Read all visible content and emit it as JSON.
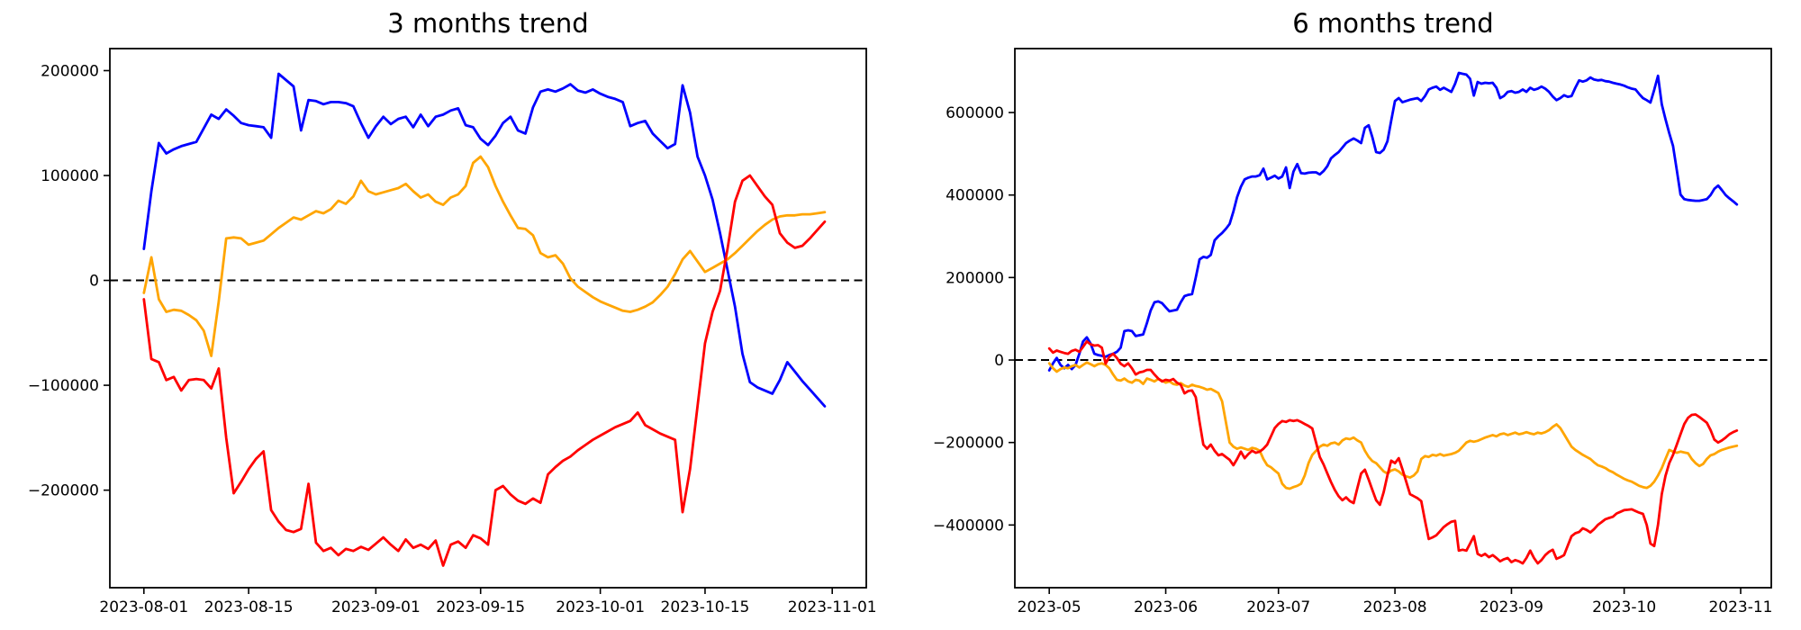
{
  "figure": {
    "background": "#ffffff",
    "text_color": "#000000",
    "zero_line_color": "#000000"
  },
  "chart_data": [
    {
      "type": "line",
      "title": "3 months trend",
      "xlabel": "",
      "ylabel": "",
      "grid": false,
      "legend": "none",
      "start_date": "2023-08-01",
      "freq": "daily",
      "x_tick_labels": [
        "2023-08-01",
        "2023-08-15",
        "2023-09-01",
        "2023-09-15",
        "2023-10-01",
        "2023-10-15",
        "2023-11-01"
      ],
      "x_tick_days": [
        0,
        14,
        31,
        45,
        61,
        75,
        92
      ],
      "xlim_days": [
        -4.55,
        96.55
      ],
      "ylim": [
        -293000,
        221000
      ],
      "y_ticks": [
        200000,
        100000,
        0,
        -100000,
        -200000
      ],
      "y_tick_labels": [
        "200000",
        "100000",
        "0",
        "−100000",
        "−200000"
      ],
      "zero_dashed_line": 0,
      "series": [
        {
          "name": "blue-series",
          "color": "#0000ff",
          "values": [
            30000,
            85000,
            131000,
            121000,
            125000,
            128000,
            130000,
            132000,
            145000,
            158000,
            154000,
            163000,
            157000,
            150000,
            148000,
            147000,
            146000,
            136000,
            197000,
            191000,
            185000,
            143000,
            172000,
            171000,
            168000,
            170000,
            170000,
            169000,
            166000,
            150000,
            136000,
            147000,
            156000,
            149000,
            154000,
            156000,
            146000,
            158000,
            147000,
            156000,
            158000,
            162000,
            164000,
            148000,
            146000,
            135000,
            129000,
            138000,
            150000,
            156000,
            143000,
            140000,
            165000,
            180000,
            182000,
            180000,
            183000,
            187000,
            181000,
            179000,
            182000,
            178000,
            175000,
            173000,
            170000,
            147000,
            150000,
            152000,
            140000,
            133000,
            126000,
            130000,
            186000,
            160000,
            118000,
            100000,
            77000,
            45000,
            10000,
            -25000,
            -70000,
            -97000,
            -102000,
            -105000,
            -108000,
            -95000,
            -78000,
            -87000,
            -96000,
            -104000,
            -112000,
            -120000
          ]
        },
        {
          "name": "orange-series",
          "color": "#ffa500",
          "values": [
            -12000,
            22000,
            -18000,
            -30000,
            -28000,
            -29000,
            -33000,
            -38000,
            -48000,
            -72000,
            -20000,
            40000,
            41000,
            40000,
            34000,
            36000,
            38000,
            44000,
            50000,
            55000,
            60000,
            58000,
            62000,
            66000,
            64000,
            68000,
            76000,
            73000,
            80000,
            95000,
            85000,
            82000,
            84000,
            86000,
            88000,
            92000,
            85000,
            79000,
            82000,
            75000,
            72000,
            79000,
            82000,
            90000,
            112000,
            118000,
            108000,
            90000,
            75000,
            62000,
            50000,
            49000,
            43000,
            26000,
            22000,
            24000,
            16000,
            2000,
            -6000,
            -11000,
            -16000,
            -20000,
            -23000,
            -26000,
            -29000,
            -30000,
            -28000,
            -25000,
            -21000,
            -14000,
            -6000,
            6000,
            20000,
            28000,
            18000,
            8000,
            12000,
            16000,
            20000,
            26000,
            33000,
            40000,
            47000,
            53000,
            58000,
            61000,
            62000,
            62000,
            63000,
            63000,
            64000,
            65000
          ]
        },
        {
          "name": "red-series",
          "color": "#ff0000",
          "values": [
            -18000,
            -75000,
            -78000,
            -95000,
            -92000,
            -105000,
            -95000,
            -94000,
            -95000,
            -103000,
            -84000,
            -150000,
            -203000,
            -192000,
            -180000,
            -170000,
            -163000,
            -219000,
            -230000,
            -238000,
            -240000,
            -237000,
            -194000,
            -250000,
            -258000,
            -255000,
            -262000,
            -256000,
            -258000,
            -254000,
            -257000,
            -251000,
            -245000,
            -252000,
            -258000,
            -247000,
            -255000,
            -252000,
            -256000,
            -248000,
            -272000,
            -252000,
            -249000,
            -255000,
            -243000,
            -246000,
            -252000,
            -200000,
            -196000,
            -204000,
            -210000,
            -213000,
            -208000,
            -212000,
            -185000,
            -178000,
            -172000,
            -168000,
            -162000,
            -157000,
            -152000,
            -148000,
            -144000,
            -140000,
            -137000,
            -134000,
            -126000,
            -138000,
            -142000,
            -146000,
            -149000,
            -152000,
            -221000,
            -180000,
            -120000,
            -60000,
            -30000,
            -10000,
            30000,
            75000,
            95000,
            100000,
            90000,
            80000,
            72000,
            45000,
            36000,
            31000,
            33000,
            40000,
            48000,
            56000
          ]
        }
      ]
    },
    {
      "type": "line",
      "title": "6 months trend",
      "xlabel": "",
      "ylabel": "",
      "grid": false,
      "legend": "none",
      "start_date": "2023-05-01",
      "freq": "daily",
      "x_tick_labels": [
        "2023-05",
        "2023-06",
        "2023-07",
        "2023-08",
        "2023-09",
        "2023-10",
        "2023-11"
      ],
      "x_tick_days": [
        0,
        31,
        61,
        92,
        123,
        153,
        184
      ],
      "xlim_days": [
        -9.15,
        192.15
      ],
      "ylim": [
        -552000,
        755000
      ],
      "y_ticks": [
        600000,
        400000,
        200000,
        0,
        -200000,
        -400000
      ],
      "y_tick_labels": [
        "600000",
        "400000",
        "200000",
        "0",
        "−200000",
        "−400000"
      ],
      "zero_dashed_line": 0,
      "series": [
        {
          "name": "blue-series",
          "color": "#0000ff",
          "values": [
            -25000,
            -8000,
            5000,
            -12000,
            -20000,
            -12000,
            -22000,
            -12000,
            15000,
            45000,
            55000,
            40000,
            15000,
            12000,
            10000,
            8000,
            12000,
            15000,
            20000,
            30000,
            70000,
            72000,
            70000,
            58000,
            60000,
            62000,
            90000,
            120000,
            140000,
            142000,
            138000,
            128000,
            118000,
            120000,
            122000,
            140000,
            155000,
            158000,
            160000,
            200000,
            244000,
            250000,
            248000,
            255000,
            290000,
            300000,
            308000,
            318000,
            330000,
            360000,
            395000,
            420000,
            438000,
            442000,
            445000,
            445000,
            448000,
            464000,
            438000,
            442000,
            447000,
            440000,
            445000,
            467000,
            417000,
            457000,
            475000,
            453000,
            452000,
            454000,
            455000,
            455000,
            450000,
            458000,
            470000,
            489000,
            497000,
            504000,
            515000,
            526000,
            532000,
            537000,
            532000,
            526000,
            563000,
            569000,
            540000,
            504000,
            502000,
            510000,
            530000,
            580000,
            628000,
            635000,
            625000,
            628000,
            631000,
            633000,
            635000,
            628000,
            640000,
            656000,
            660000,
            663000,
            655000,
            660000,
            655000,
            650000,
            670000,
            696000,
            694000,
            692000,
            682000,
            641000,
            674000,
            670000,
            672000,
            671000,
            672000,
            660000,
            635000,
            640000,
            650000,
            652000,
            648000,
            650000,
            656000,
            650000,
            660000,
            655000,
            658000,
            663000,
            658000,
            650000,
            639000,
            630000,
            635000,
            642000,
            638000,
            640000,
            660000,
            678000,
            675000,
            678000,
            685000,
            680000,
            678000,
            679000,
            676000,
            675000,
            672000,
            670000,
            668000,
            665000,
            661000,
            658000,
            656000,
            645000,
            635000,
            630000,
            624000,
            655000,
            689000,
            620000,
            584000,
            550000,
            519000,
            460000,
            401000,
            390000,
            388000,
            387000,
            386000,
            386000,
            388000,
            390000,
            400000,
            415000,
            423000,
            412000,
            400000,
            392000,
            385000,
            377000
          ]
        },
        {
          "name": "orange-series",
          "color": "#ffa500",
          "values": [
            -8000,
            -20000,
            -28000,
            -22000,
            -18000,
            -20000,
            -15000,
            -12000,
            -18000,
            -12000,
            -6000,
            -10000,
            -15000,
            -10000,
            -8000,
            -12000,
            -20000,
            -35000,
            -48000,
            -50000,
            -45000,
            -52000,
            -55000,
            -48000,
            -50000,
            -58000,
            -45000,
            -48000,
            -52000,
            -46000,
            -50000,
            -55000,
            -52000,
            -58000,
            -60000,
            -56000,
            -62000,
            -65000,
            -60000,
            -63000,
            -65000,
            -68000,
            -72000,
            -70000,
            -75000,
            -80000,
            -100000,
            -150000,
            -200000,
            -210000,
            -215000,
            -212000,
            -215000,
            -218000,
            -213000,
            -215000,
            -220000,
            -240000,
            -255000,
            -260000,
            -268000,
            -275000,
            -300000,
            -310000,
            -312000,
            -308000,
            -305000,
            -300000,
            -280000,
            -250000,
            -230000,
            -220000,
            -210000,
            -205000,
            -208000,
            -202000,
            -200000,
            -205000,
            -195000,
            -190000,
            -192000,
            -188000,
            -195000,
            -200000,
            -220000,
            -235000,
            -245000,
            -250000,
            -260000,
            -270000,
            -275000,
            -268000,
            -265000,
            -270000,
            -278000,
            -282000,
            -285000,
            -280000,
            -270000,
            -240000,
            -233000,
            -235000,
            -230000,
            -232000,
            -228000,
            -232000,
            -230000,
            -228000,
            -225000,
            -220000,
            -210000,
            -200000,
            -196000,
            -198000,
            -196000,
            -192000,
            -188000,
            -185000,
            -182000,
            -185000,
            -180000,
            -178000,
            -182000,
            -179000,
            -176000,
            -180000,
            -178000,
            -175000,
            -178000,
            -180000,
            -176000,
            -178000,
            -175000,
            -170000,
            -162000,
            -156000,
            -165000,
            -180000,
            -195000,
            -210000,
            -218000,
            -224000,
            -230000,
            -235000,
            -240000,
            -248000,
            -255000,
            -258000,
            -262000,
            -268000,
            -272000,
            -278000,
            -283000,
            -288000,
            -292000,
            -295000,
            -300000,
            -305000,
            -308000,
            -310000,
            -305000,
            -295000,
            -280000,
            -262000,
            -240000,
            -218000,
            -222000,
            -225000,
            -222000,
            -224000,
            -226000,
            -240000,
            -250000,
            -257000,
            -252000,
            -240000,
            -231000,
            -228000,
            -222000,
            -218000,
            -215000,
            -212000,
            -210000,
            -208000
          ]
        },
        {
          "name": "red-series",
          "color": "#ff0000",
          "values": [
            28000,
            18000,
            23000,
            20000,
            17000,
            15000,
            22000,
            25000,
            20000,
            32000,
            45000,
            38000,
            35000,
            36000,
            30000,
            -9000,
            8000,
            15000,
            5000,
            -9000,
            -15000,
            -8000,
            -20000,
            -35000,
            -30000,
            -28000,
            -24000,
            -24000,
            -35000,
            -45000,
            -52000,
            -48000,
            -50000,
            -46000,
            -55000,
            -60000,
            -81000,
            -75000,
            -74000,
            -90000,
            -150000,
            -205000,
            -215000,
            -205000,
            -220000,
            -231000,
            -228000,
            -235000,
            -242000,
            -255000,
            -240000,
            -222000,
            -238000,
            -228000,
            -220000,
            -225000,
            -222000,
            -215000,
            -205000,
            -185000,
            -165000,
            -155000,
            -148000,
            -150000,
            -146000,
            -148000,
            -146000,
            -150000,
            -155000,
            -160000,
            -166000,
            -200000,
            -235000,
            -253000,
            -275000,
            -296000,
            -315000,
            -330000,
            -340000,
            -333000,
            -342000,
            -347000,
            -310000,
            -275000,
            -266000,
            -290000,
            -315000,
            -340000,
            -351000,
            -320000,
            -280000,
            -244000,
            -250000,
            -238000,
            -265000,
            -295000,
            -325000,
            -330000,
            -335000,
            -342000,
            -390000,
            -434000,
            -430000,
            -425000,
            -415000,
            -405000,
            -398000,
            -392000,
            -390000,
            -462000,
            -460000,
            -462000,
            -445000,
            -427000,
            -470000,
            -475000,
            -470000,
            -478000,
            -473000,
            -480000,
            -488000,
            -483000,
            -480000,
            -490000,
            -485000,
            -488000,
            -493000,
            -480000,
            -462000,
            -480000,
            -493000,
            -485000,
            -473000,
            -465000,
            -460000,
            -482000,
            -478000,
            -473000,
            -450000,
            -427000,
            -420000,
            -417000,
            -408000,
            -412000,
            -418000,
            -410000,
            -400000,
            -393000,
            -386000,
            -383000,
            -380000,
            -372000,
            -368000,
            -364000,
            -363000,
            -362000,
            -366000,
            -370000,
            -373000,
            -400000,
            -445000,
            -451000,
            -400000,
            -325000,
            -281000,
            -250000,
            -230000,
            -205000,
            -180000,
            -155000,
            -140000,
            -133000,
            -132000,
            -138000,
            -145000,
            -152000,
            -170000,
            -193000,
            -200000,
            -195000,
            -188000,
            -180000,
            -175000,
            -171000
          ]
        }
      ]
    }
  ]
}
